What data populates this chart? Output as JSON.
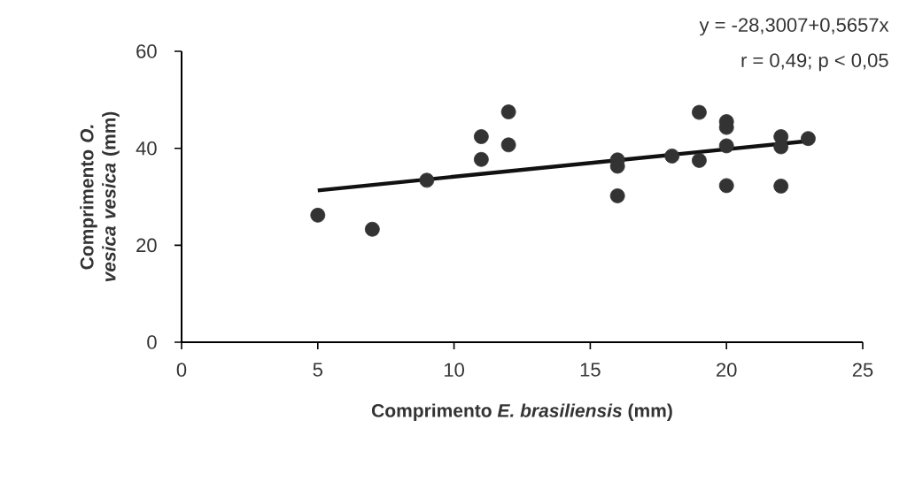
{
  "chart_data": {
    "type": "scatter",
    "xlabel": "Comprimento *E. brasiliensis* (mm)",
    "ylabel": "Comprimento *O. vesica vesica* (mm)",
    "annotations": [
      "y = -28,3007+0,5657x",
      "r = 0,49; p < 0,05"
    ],
    "xlim": [
      0,
      25
    ],
    "xticks": [
      0,
      5,
      10,
      15,
      20,
      25
    ],
    "ylim": [
      0,
      60
    ],
    "yticks": [
      0,
      20,
      40,
      60
    ],
    "grid": false,
    "series": [
      {
        "marker": "circle",
        "color": "#333333",
        "x": [
          5,
          7,
          9,
          11,
          11,
          12,
          12,
          16,
          16,
          16,
          18,
          19,
          19,
          20,
          20,
          20,
          20,
          22,
          22,
          22,
          23
        ],
        "values": [
          26.2,
          23.3,
          33.4,
          42.4,
          37.7,
          47.5,
          40.7,
          30.2,
          37.6,
          36.3,
          38.4,
          47.4,
          37.5,
          45.5,
          44.3,
          40.5,
          32.3,
          42.4,
          40.3,
          32.2,
          42.0
        ]
      },
      {
        "type": "line",
        "marker": "none",
        "color": "#111111",
        "x": [
          5,
          23
        ],
        "values": [
          31.3,
          41.5
        ]
      }
    ]
  }
}
